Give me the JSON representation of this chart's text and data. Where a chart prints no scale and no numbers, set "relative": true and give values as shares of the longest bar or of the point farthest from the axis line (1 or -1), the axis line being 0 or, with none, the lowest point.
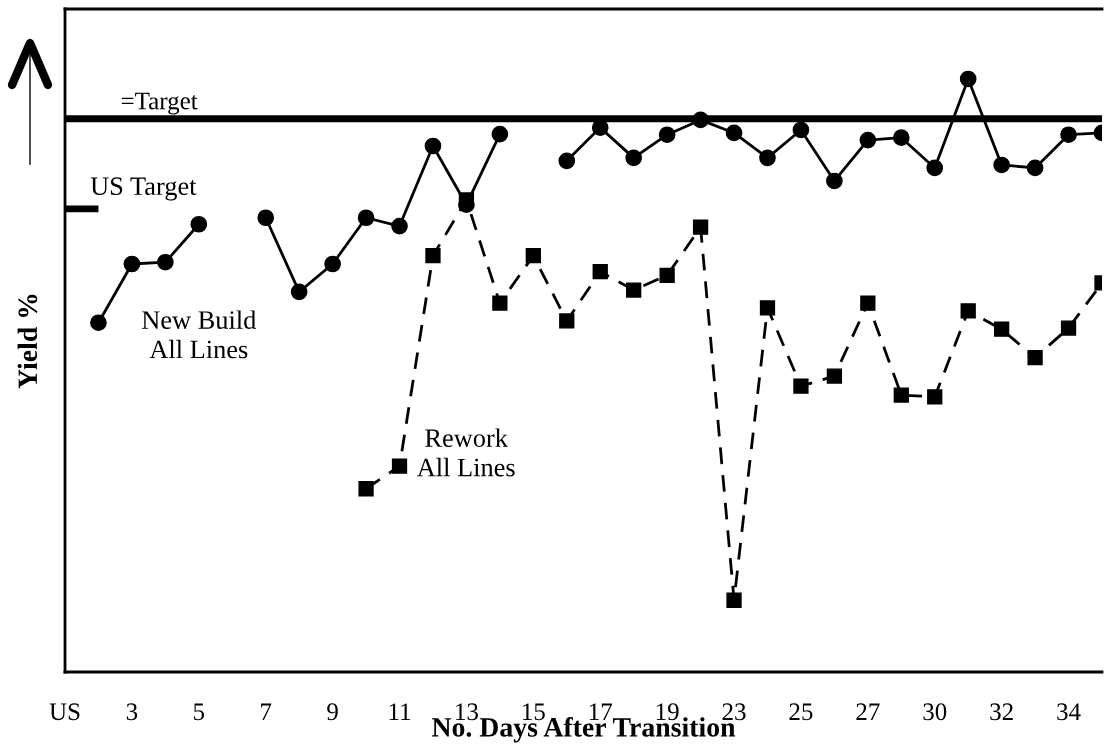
{
  "chart_data": {
    "type": "line",
    "relative": true,
    "xlabel": "No. Days After Transition",
    "ylabel": "Yield %",
    "categories": [
      "US",
      null,
      "3",
      null,
      "5",
      null,
      "7",
      null,
      "9",
      null,
      "11",
      null,
      "13",
      null,
      "15",
      null,
      "17",
      null,
      "19",
      null,
      "23",
      null,
      "25",
      null,
      "27",
      null,
      "30",
      null,
      "32",
      null,
      "34",
      null
    ],
    "series": [
      {
        "name": "New Build\nAll Lines",
        "color": "#000000",
        "marker": "circle",
        "line_style": "solid",
        "values": [
          null,
          0.589,
          0.688,
          0.691,
          0.755,
          null,
          0.766,
          0.641,
          0.688,
          0.766,
          0.752,
          0.887,
          0.788,
          0.907,
          null,
          0.862,
          0.918,
          0.867,
          0.906,
          0.931,
          0.909,
          0.867,
          0.914,
          0.828,
          0.897,
          0.901,
          0.85,
          1,
          0.855,
          0.85,
          0.906,
          0.909
        ]
      },
      {
        "name": "Rework\nAll Lines",
        "color": "#000000",
        "marker": "square",
        "line_style": "dashed",
        "values": [
          null,
          null,
          null,
          null,
          null,
          null,
          null,
          null,
          null,
          0.309,
          0.347,
          0.702,
          0.796,
          0.622,
          0.702,
          0.592,
          0.675,
          0.644,
          0.669,
          0.75,
          0.121,
          0.614,
          0.482,
          0.499,
          0.622,
          0.467,
          0.464,
          0.609,
          0.578,
          0.53,
          0.58,
          0.656
        ]
      },
      {
        "name": "US Target",
        "color": "#000000",
        "marker": "none",
        "line_style": "solid",
        "values": [
          0.781,
          0.781,
          null,
          null,
          null,
          null,
          null,
          null,
          null,
          null,
          null,
          null,
          null,
          null,
          null,
          null,
          null,
          null,
          null,
          null,
          null,
          null,
          null,
          null,
          null,
          null,
          null,
          null,
          null,
          null,
          null,
          null
        ]
      }
    ],
    "ref_lines": [
      {
        "axis": "y",
        "value": 0.933,
        "label": "=Target",
        "color": "#000000"
      }
    ],
    "grid": false,
    "legend": false
  }
}
